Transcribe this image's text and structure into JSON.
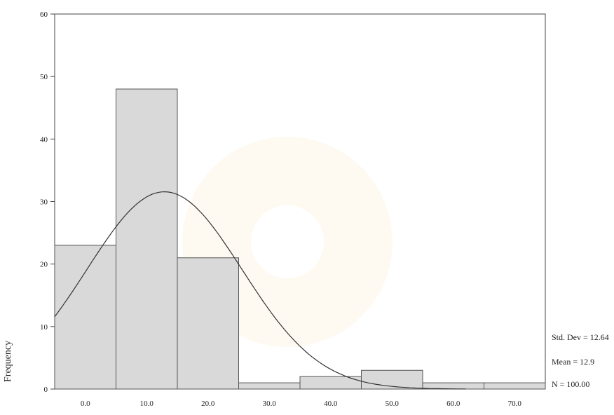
{
  "chart_data": {
    "type": "bar",
    "bin_centers": [
      0,
      10,
      20,
      30,
      40,
      50,
      60,
      70
    ],
    "bin_width": 10,
    "values": [
      23,
      48,
      21,
      1,
      2,
      3,
      1,
      1
    ],
    "x_tick_labels": [
      "0.0",
      "10.0",
      "20.0",
      "30.0",
      "40.0",
      "50.0",
      "60.0",
      "70.0"
    ],
    "y_ticks": [
      0,
      10,
      20,
      30,
      40,
      50,
      60
    ],
    "y_tick_labels": [
      "0",
      "10",
      "20",
      "30",
      "40",
      "50",
      "60"
    ],
    "xlim": [
      -5,
      75
    ],
    "ylim": [
      0,
      60
    ],
    "ylabel": "Frequency",
    "normal_curve": {
      "mean": 12.9,
      "sd": 12.64,
      "n": 100
    },
    "stats": {
      "std_dev": "Std. Dev = 12.64",
      "mean": "Mean = 12.9",
      "n": "N = 100.00"
    },
    "colors": {
      "bar_fill": "#d9d9d9",
      "bar_stroke": "#555555",
      "curve": "#333333",
      "watermark": "#f2c66b"
    }
  }
}
